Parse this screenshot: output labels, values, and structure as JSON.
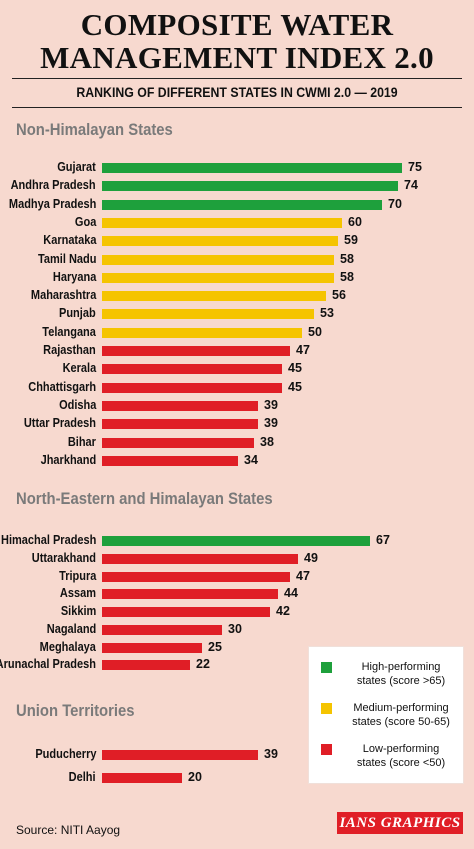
{
  "title_line1": "COMPOSITE WATER",
  "title_line2": "MANAGEMENT INDEX 2.0",
  "subtitle": "RANKING OF DIFFERENT STATES IN CWMI 2.0 — 2019",
  "source": "Source: NITI Aayog",
  "brand": "IANS GRAPHICS",
  "colors": {
    "high": "#1ea03c",
    "medium": "#f5c400",
    "low": "#e01e26",
    "background": "#f7d9cf"
  },
  "legend": [
    {
      "key": "high",
      "line1": "High-performing",
      "line2": "states (score >65)"
    },
    {
      "key": "medium",
      "line1": "Medium-performing",
      "line2": "states (score 50-65)"
    },
    {
      "key": "low",
      "line1": "Low-performing",
      "line2": "states (score <50)"
    }
  ],
  "chart_data": {
    "type": "bar",
    "orientation": "horizontal",
    "title": "COMPOSITE WATER MANAGEMENT INDEX 2.0",
    "subtitle": "RANKING OF DIFFERENT STATES IN CWMI 2.0 — 2019",
    "xlim": [
      0,
      75
    ],
    "grid": false,
    "legend_position": "bottom-right",
    "groups": [
      {
        "name": "Non-Himalayan States",
        "categories": [
          "Gujarat",
          "Andhra Pradesh",
          "Madhya Pradesh",
          "Goa",
          "Karnataka",
          "Tamil Nadu",
          "Haryana",
          "Maharashtra",
          "Punjab",
          "Telangana",
          "Rajasthan",
          "Kerala",
          "Chhattisgarh",
          "Odisha",
          "Uttar Pradesh",
          "Bihar",
          "Jharkhand"
        ],
        "values": [
          75,
          74,
          70,
          60,
          59,
          58,
          58,
          56,
          53,
          50,
          47,
          45,
          45,
          39,
          39,
          38,
          34
        ],
        "classes": [
          "high",
          "high",
          "high",
          "medium",
          "medium",
          "medium",
          "medium",
          "medium",
          "medium",
          "medium",
          "low",
          "low",
          "low",
          "low",
          "low",
          "low",
          "low"
        ]
      },
      {
        "name": "North-Eastern and Himalayan States",
        "categories": [
          "Himachal Pradesh",
          "Uttarakhand",
          "Tripura",
          "Assam",
          "Sikkim",
          "Nagaland",
          "Meghalaya",
          "Arunachal Pradesh"
        ],
        "values": [
          67,
          49,
          47,
          44,
          42,
          30,
          25,
          22
        ],
        "classes": [
          "high",
          "low",
          "low",
          "low",
          "low",
          "low",
          "low",
          "low"
        ]
      },
      {
        "name": "Union Territories",
        "categories": [
          "Puducherry",
          "Delhi"
        ],
        "values": [
          39,
          20
        ],
        "classes": [
          "low",
          "low"
        ]
      }
    ]
  }
}
